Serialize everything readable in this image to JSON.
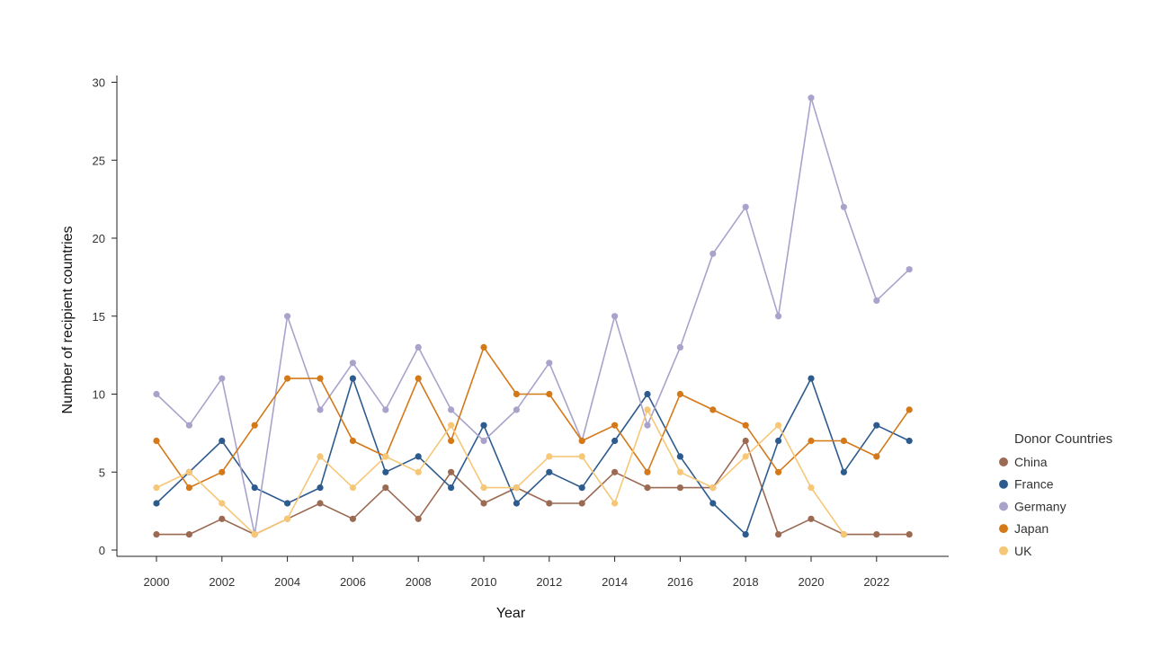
{
  "chart_data": {
    "type": "line",
    "xlabel": "Year",
    "ylabel": "Number of recipient countries",
    "xlim": [
      1999,
      2024
    ],
    "ylim": [
      0,
      30
    ],
    "x_ticks": [
      "2000",
      "2002",
      "2004",
      "2006",
      "2008",
      "2010",
      "2012",
      "2014",
      "2016",
      "2018",
      "2020",
      "2022"
    ],
    "y_ticks": [
      "0",
      "5",
      "10",
      "15",
      "20",
      "25",
      "30"
    ],
    "grid": false,
    "legend": {
      "title": "Donor Countries",
      "position": "right"
    },
    "x": [
      2000,
      2001,
      2002,
      2003,
      2004,
      2005,
      2006,
      2007,
      2008,
      2009,
      2010,
      2011,
      2012,
      2013,
      2014,
      2015,
      2016,
      2017,
      2018,
      2019,
      2020,
      2021,
      2022,
      2023
    ],
    "series": [
      {
        "name": "China",
        "color": "#9b6a53",
        "values": [
          1,
          1,
          2,
          1,
          2,
          3,
          2,
          4,
          2,
          5,
          3,
          4,
          3,
          3,
          5,
          4,
          4,
          4,
          7,
          1,
          2,
          1,
          1,
          1
        ]
      },
      {
        "name": "France",
        "color": "#2e5b8e",
        "values": [
          3,
          5,
          7,
          4,
          3,
          4,
          11,
          5,
          6,
          4,
          8,
          3,
          5,
          4,
          7,
          10,
          6,
          3,
          1,
          7,
          11,
          5,
          8,
          7
        ]
      },
      {
        "name": "Germany",
        "color": "#a9a3cc",
        "values": [
          10,
          8,
          11,
          1,
          15,
          9,
          12,
          9,
          13,
          9,
          7,
          9,
          12,
          7,
          15,
          8,
          13,
          19,
          22,
          15,
          29,
          22,
          16,
          18
        ]
      },
      {
        "name": "Japan",
        "color": "#d47818",
        "values": [
          7,
          4,
          5,
          8,
          11,
          11,
          7,
          6,
          11,
          7,
          13,
          10,
          10,
          7,
          8,
          5,
          10,
          9,
          8,
          5,
          7,
          7,
          6,
          9
        ]
      },
      {
        "name": "UK",
        "color": "#f6c777",
        "values": [
          4,
          5,
          3,
          1,
          2,
          6,
          4,
          6,
          5,
          8,
          4,
          4,
          6,
          6,
          3,
          9,
          5,
          4,
          6,
          8,
          4,
          1,
          null,
          null
        ]
      }
    ]
  }
}
